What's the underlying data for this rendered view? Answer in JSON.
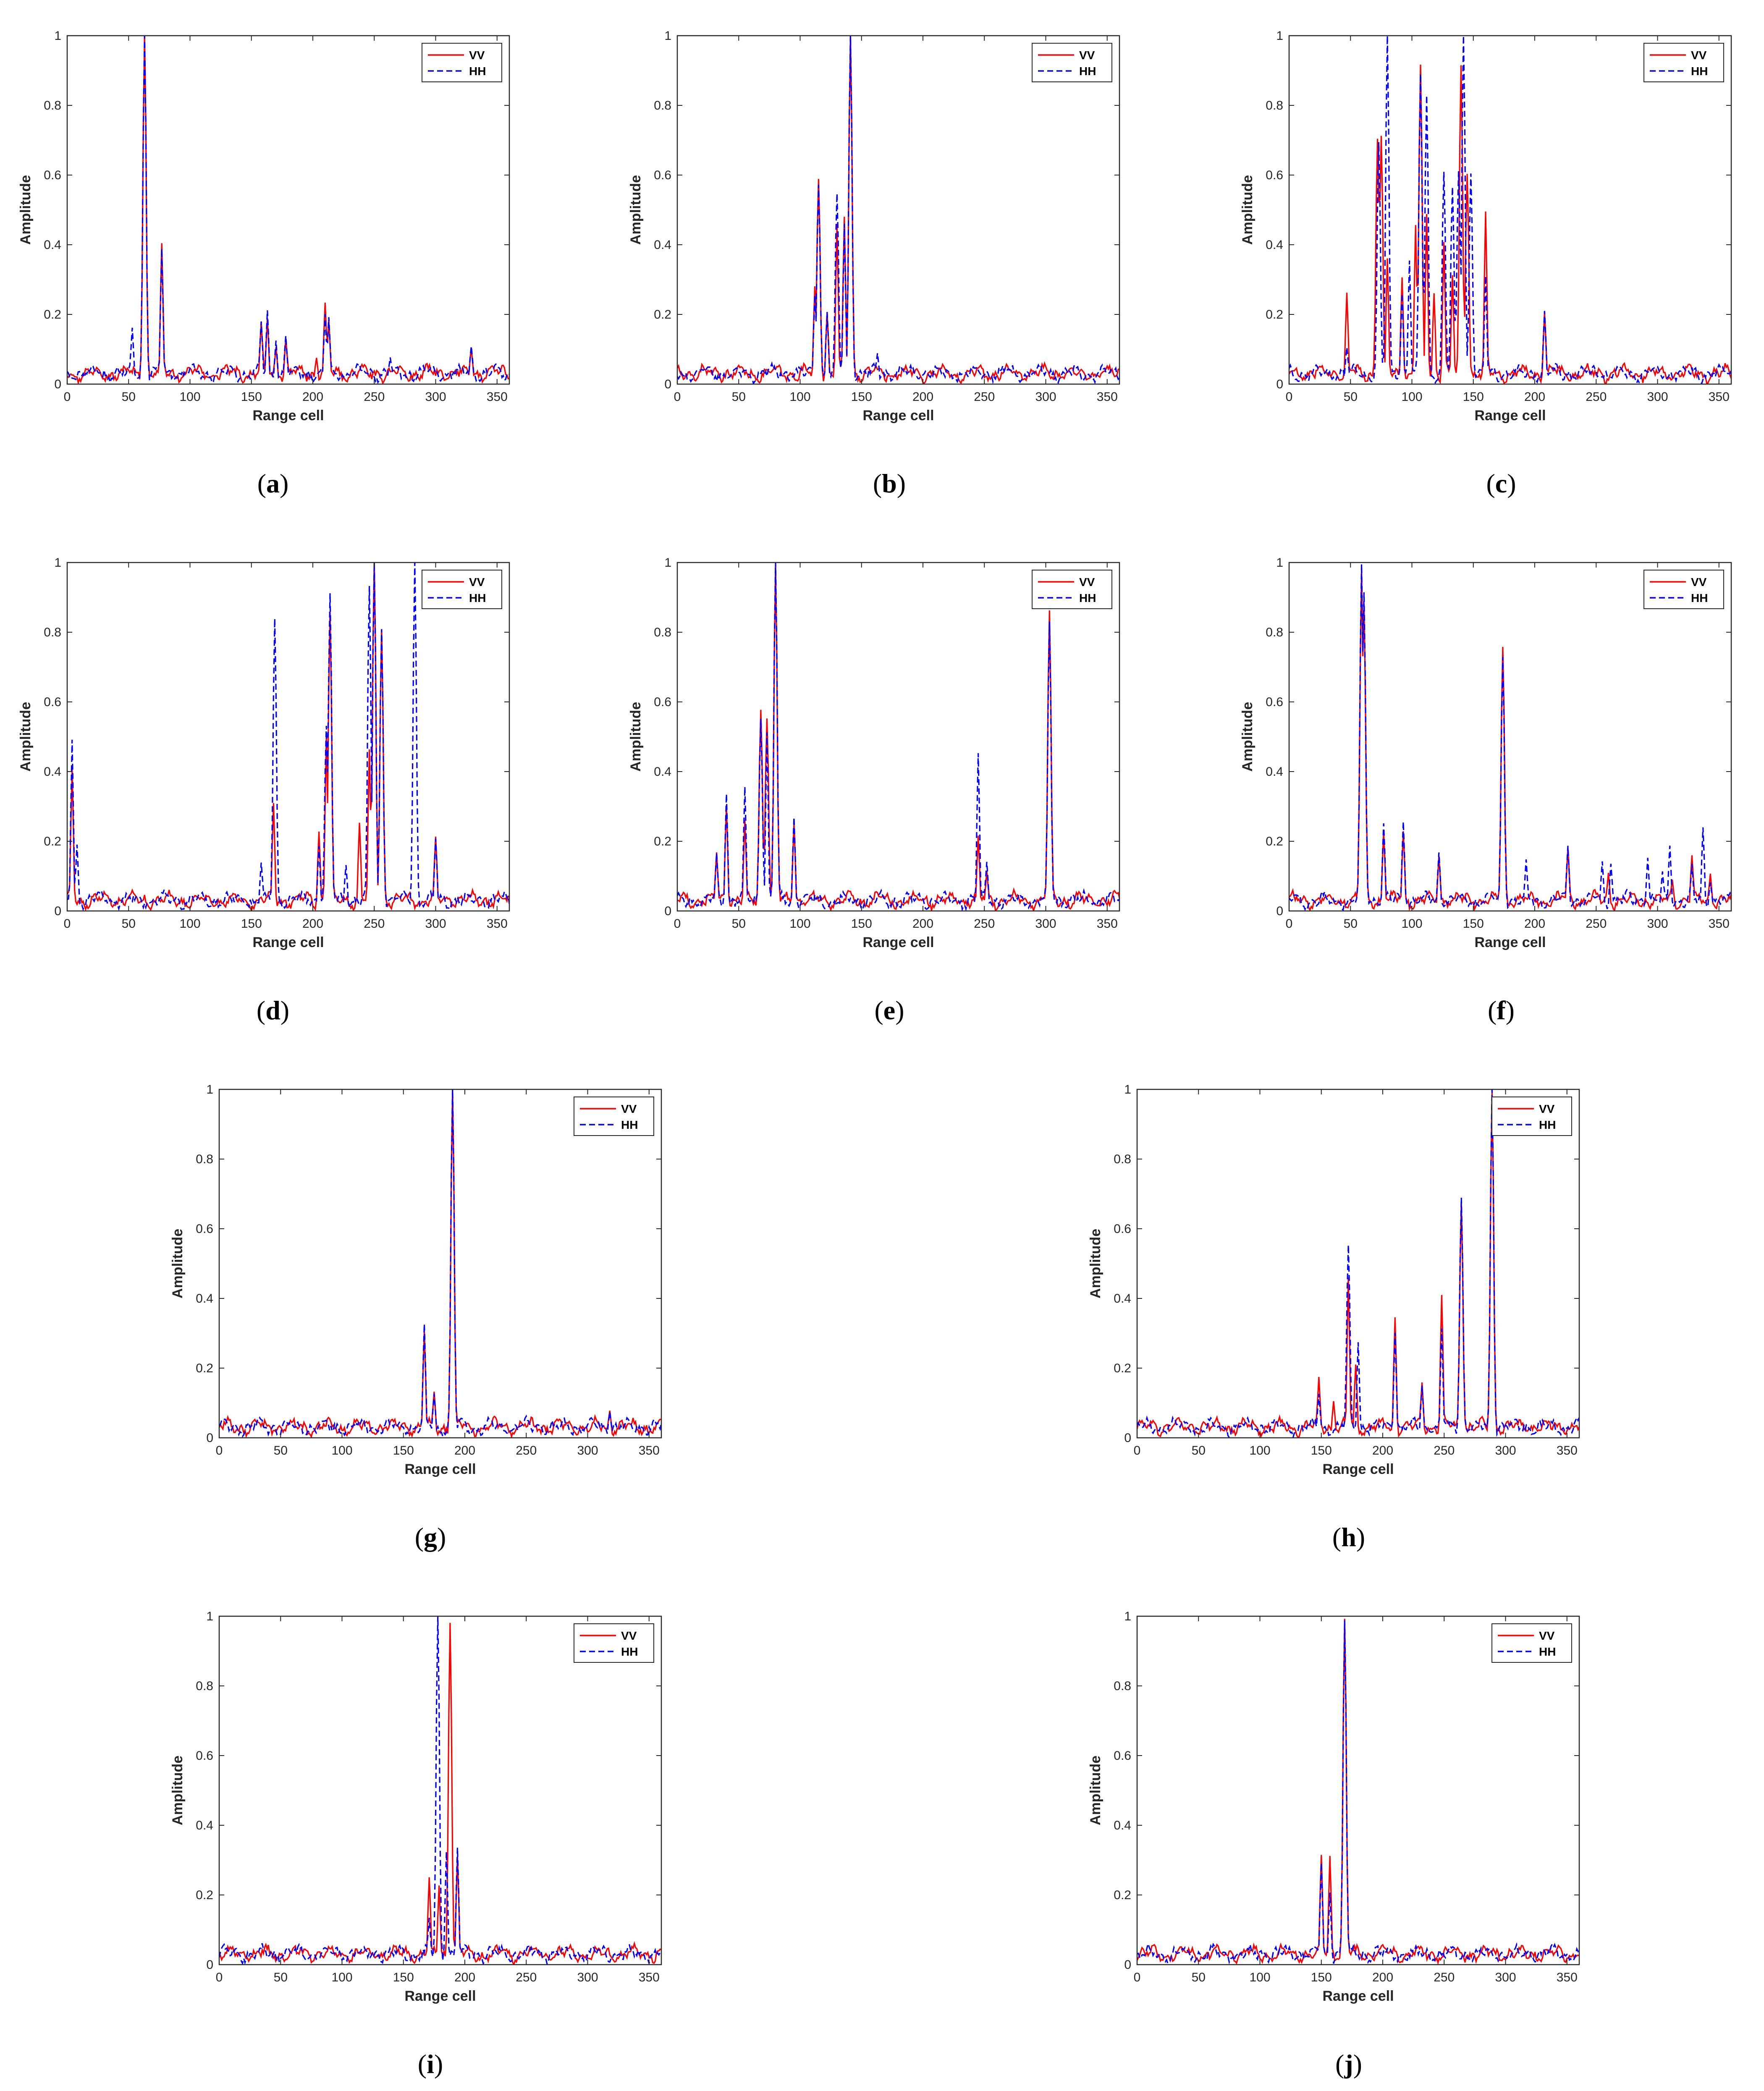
{
  "colors": {
    "vv": "#ff0000",
    "hh": "#0000ff",
    "axis": "#262626"
  },
  "chart_data": [
    {
      "id": "a",
      "caption": "a",
      "type": "line",
      "xlabel": "Range cell",
      "ylabel": "Amplitude",
      "xlim": [
        0,
        360
      ],
      "ylim": [
        0,
        1
      ],
      "xticks": [
        0,
        50,
        100,
        150,
        200,
        250,
        300,
        350
      ],
      "yticks": [
        0,
        0.2,
        0.4,
        0.6,
        0.8,
        1
      ],
      "legend": "top-right",
      "series": [
        {
          "name": "VV",
          "style": "solid",
          "peaks": [
            [
              63,
              1.0
            ],
            [
              77,
              0.39
            ],
            [
              158,
              0.16
            ],
            [
              163,
              0.18
            ],
            [
              170,
              0.1
            ],
            [
              178,
              0.12
            ],
            [
              203,
              0.07
            ],
            [
              210,
              0.22
            ],
            [
              213,
              0.17
            ],
            [
              329,
              0.1
            ]
          ]
        },
        {
          "name": "HH",
          "style": "dashed",
          "peaks": [
            [
              53,
              0.15
            ],
            [
              63,
              1.0
            ],
            [
              77,
              0.38
            ],
            [
              158,
              0.17
            ],
            [
              163,
              0.2
            ],
            [
              170,
              0.12
            ],
            [
              178,
              0.13
            ],
            [
              210,
              0.19
            ],
            [
              213,
              0.18
            ],
            [
              263,
              0.07
            ],
            [
              329,
              0.1
            ]
          ]
        }
      ]
    },
    {
      "id": "b",
      "caption": "b",
      "type": "line",
      "xlabel": "Range cell",
      "ylabel": "Amplitude",
      "xlim": [
        0,
        360
      ],
      "ylim": [
        0,
        1
      ],
      "xticks": [
        0,
        50,
        100,
        150,
        200,
        250,
        300,
        350
      ],
      "yticks": [
        0,
        0.2,
        0.4,
        0.6,
        0.8,
        1
      ],
      "legend": "top-right",
      "series": [
        {
          "name": "VV",
          "style": "solid",
          "peaks": [
            [
              112,
              0.27
            ],
            [
              115,
              0.58
            ],
            [
              122,
              0.2
            ],
            [
              130,
              0.45
            ],
            [
              136,
              0.47
            ],
            [
              141,
              1.0
            ]
          ]
        },
        {
          "name": "HH",
          "style": "dashed",
          "peaks": [
            [
              112,
              0.25
            ],
            [
              115,
              0.57
            ],
            [
              122,
              0.2
            ],
            [
              130,
              0.53
            ],
            [
              136,
              0.45
            ],
            [
              141,
              1.0
            ],
            [
              163,
              0.08
            ]
          ]
        }
      ]
    },
    {
      "id": "c",
      "caption": "c",
      "type": "line",
      "xlabel": "Range cell",
      "ylabel": "Amplitude",
      "xlim": [
        0,
        360
      ],
      "ylim": [
        0,
        1
      ],
      "xticks": [
        0,
        50,
        100,
        150,
        200,
        250,
        300,
        350
      ],
      "yticks": [
        0,
        0.2,
        0.4,
        0.6,
        0.8,
        1
      ],
      "legend": "top-right",
      "series": [
        {
          "name": "VV",
          "style": "solid",
          "peaks": [
            [
              47,
              0.25
            ],
            [
              72,
              0.7
            ],
            [
              75,
              0.7
            ],
            [
              80,
              0.35
            ],
            [
              92,
              0.3
            ],
            [
              103,
              0.45
            ],
            [
              107,
              0.9
            ],
            [
              112,
              0.48
            ],
            [
              118,
              0.25
            ],
            [
              126,
              0.4
            ],
            [
              133,
              0.3
            ],
            [
              140,
              0.9
            ],
            [
              145,
              0.6
            ],
            [
              160,
              0.48
            ],
            [
              208,
              0.2
            ]
          ]
        },
        {
          "name": "HH",
          "style": "dashed",
          "peaks": [
            [
              47,
              0.1
            ],
            [
              73,
              0.68
            ],
            [
              80,
              1.0
            ],
            [
              92,
              0.25
            ],
            [
              98,
              0.35
            ],
            [
              107,
              0.88
            ],
            [
              112,
              0.82
            ],
            [
              126,
              0.6
            ],
            [
              133,
              0.55
            ],
            [
              138,
              0.6
            ],
            [
              142,
              1.0
            ],
            [
              148,
              0.6
            ],
            [
              160,
              0.3
            ],
            [
              208,
              0.2
            ]
          ]
        }
      ]
    },
    {
      "id": "d",
      "caption": "d",
      "type": "line",
      "xlabel": "Range cell",
      "ylabel": "Amplitude",
      "xlim": [
        0,
        360
      ],
      "ylim": [
        0,
        1
      ],
      "xticks": [
        0,
        50,
        100,
        150,
        200,
        250,
        300,
        350
      ],
      "yticks": [
        0,
        0.2,
        0.4,
        0.6,
        0.8,
        1
      ],
      "legend": "top-right",
      "series": [
        {
          "name": "VV",
          "style": "solid",
          "peaks": [
            [
              4,
              0.4
            ],
            [
              168,
              0.3
            ],
            [
              205,
              0.22
            ],
            [
              211,
              0.5
            ],
            [
              214,
              0.85
            ],
            [
              238,
              0.24
            ],
            [
              246,
              0.45
            ],
            [
              250,
              1.0
            ],
            [
              256,
              0.8
            ],
            [
              300,
              0.2
            ]
          ]
        },
        {
          "name": "HH",
          "style": "dashed",
          "peaks": [
            [
              4,
              0.48
            ],
            [
              8,
              0.18
            ],
            [
              158,
              0.13
            ],
            [
              169,
              0.83
            ],
            [
              205,
              0.18
            ],
            [
              211,
              0.52
            ],
            [
              214,
              0.9
            ],
            [
              227,
              0.13
            ],
            [
              246,
              0.92
            ],
            [
              250,
              0.99
            ],
            [
              256,
              0.8
            ],
            [
              283,
              1.0
            ],
            [
              300,
              0.2
            ]
          ]
        }
      ]
    },
    {
      "id": "e",
      "caption": "e",
      "type": "line",
      "xlabel": "Range cell",
      "ylabel": "Amplitude",
      "xlim": [
        0,
        360
      ],
      "ylim": [
        0,
        1
      ],
      "xticks": [
        0,
        50,
        100,
        150,
        200,
        250,
        300,
        350
      ],
      "yticks": [
        0,
        0.2,
        0.4,
        0.6,
        0.8,
        1
      ],
      "legend": "top-right",
      "series": [
        {
          "name": "VV",
          "style": "solid",
          "peaks": [
            [
              32,
              0.16
            ],
            [
              40,
              0.3
            ],
            [
              55,
              0.25
            ],
            [
              68,
              0.57
            ],
            [
              73,
              0.55
            ],
            [
              80,
              0.98
            ],
            [
              95,
              0.25
            ],
            [
              245,
              0.2
            ],
            [
              252,
              0.1
            ],
            [
              303,
              0.85
            ]
          ]
        },
        {
          "name": "HH",
          "style": "dashed",
          "peaks": [
            [
              32,
              0.15
            ],
            [
              40,
              0.33
            ],
            [
              55,
              0.34
            ],
            [
              68,
              0.55
            ],
            [
              73,
              0.5
            ],
            [
              80,
              1.0
            ],
            [
              95,
              0.26
            ],
            [
              245,
              0.44
            ],
            [
              252,
              0.13
            ],
            [
              303,
              0.82
            ]
          ]
        }
      ]
    },
    {
      "id": "f",
      "caption": "f",
      "type": "line",
      "xlabel": "Range cell",
      "ylabel": "Amplitude",
      "xlim": [
        0,
        360
      ],
      "ylim": [
        0,
        1
      ],
      "xticks": [
        0,
        50,
        100,
        150,
        200,
        250,
        300,
        350
      ],
      "yticks": [
        0,
        0.2,
        0.4,
        0.6,
        0.8,
        1
      ],
      "legend": "top-right",
      "series": [
        {
          "name": "VV",
          "style": "solid",
          "peaks": [
            [
              59,
              0.97
            ],
            [
              61,
              0.87
            ],
            [
              77,
              0.22
            ],
            [
              93,
              0.22
            ],
            [
              122,
              0.15
            ],
            [
              174,
              0.75
            ],
            [
              227,
              0.17
            ],
            [
              260,
              0.1
            ],
            [
              312,
              0.08
            ],
            [
              328,
              0.15
            ],
            [
              343,
              0.1
            ]
          ]
        },
        {
          "name": "HH",
          "style": "dashed",
          "peaks": [
            [
              59,
              0.98
            ],
            [
              61,
              0.9
            ],
            [
              77,
              0.24
            ],
            [
              93,
              0.25
            ],
            [
              122,
              0.16
            ],
            [
              174,
              0.72
            ],
            [
              193,
              0.13
            ],
            [
              227,
              0.18
            ],
            [
              255,
              0.13
            ],
            [
              262,
              0.13
            ],
            [
              292,
              0.15
            ],
            [
              304,
              0.1
            ],
            [
              310,
              0.18
            ],
            [
              328,
              0.12
            ],
            [
              337,
              0.23
            ],
            [
              343,
              0.08
            ]
          ]
        }
      ]
    },
    {
      "id": "g",
      "caption": "g",
      "type": "line",
      "xlabel": "Range cell",
      "ylabel": "Amplitude",
      "xlim": [
        0,
        360
      ],
      "ylim": [
        0,
        1
      ],
      "xticks": [
        0,
        50,
        100,
        150,
        200,
        250,
        300,
        350
      ],
      "yticks": [
        0,
        0.2,
        0.4,
        0.6,
        0.8,
        1
      ],
      "legend": "top-right",
      "series": [
        {
          "name": "VV",
          "style": "solid",
          "peaks": [
            [
              167,
              0.3
            ],
            [
              175,
              0.12
            ],
            [
              190,
              1.0
            ],
            [
              318,
              0.07
            ]
          ]
        },
        {
          "name": "HH",
          "style": "dashed",
          "peaks": [
            [
              167,
              0.31
            ],
            [
              175,
              0.12
            ],
            [
              190,
              1.0
            ],
            [
              318,
              0.07
            ]
          ]
        }
      ]
    },
    {
      "id": "h",
      "caption": "h",
      "type": "line",
      "xlabel": "Range cell",
      "ylabel": "Amplitude",
      "xlim": [
        0,
        360
      ],
      "ylim": [
        0,
        1
      ],
      "xticks": [
        0,
        50,
        100,
        150,
        200,
        250,
        300,
        350
      ],
      "yticks": [
        0,
        0.2,
        0.4,
        0.6,
        0.8,
        1
      ],
      "legend": "top-right",
      "series": [
        {
          "name": "VV",
          "style": "solid",
          "peaks": [
            [
              148,
              0.16
            ],
            [
              160,
              0.1
            ],
            [
              172,
              0.45
            ],
            [
              178,
              0.2
            ],
            [
              210,
              0.34
            ],
            [
              232,
              0.15
            ],
            [
              248,
              0.4
            ],
            [
              264,
              0.67
            ],
            [
              289,
              0.98
            ]
          ]
        },
        {
          "name": "HH",
          "style": "dashed",
          "peaks": [
            [
              148,
              0.12
            ],
            [
              172,
              0.54
            ],
            [
              180,
              0.27
            ],
            [
              210,
              0.3
            ],
            [
              232,
              0.14
            ],
            [
              248,
              0.3
            ],
            [
              264,
              0.68
            ],
            [
              289,
              1.0
            ]
          ]
        }
      ]
    },
    {
      "id": "i",
      "caption": "i",
      "type": "line",
      "xlabel": "Range cell",
      "ylabel": "Amplitude",
      "xlim": [
        0,
        360
      ],
      "ylim": [
        0,
        1
      ],
      "xticks": [
        0,
        50,
        100,
        150,
        200,
        250,
        300,
        350
      ],
      "yticks": [
        0,
        0.2,
        0.4,
        0.6,
        0.8,
        1
      ],
      "legend": "top-right",
      "series": [
        {
          "name": "VV",
          "style": "solid",
          "peaks": [
            [
              171,
              0.24
            ],
            [
              179,
              0.22
            ],
            [
              188,
              0.98
            ],
            [
              194,
              0.3
            ]
          ]
        },
        {
          "name": "HH",
          "style": "dashed",
          "peaks": [
            [
              171,
              0.12
            ],
            [
              178,
              1.0
            ],
            [
              185,
              0.32
            ],
            [
              194,
              0.33
            ]
          ]
        }
      ]
    },
    {
      "id": "j",
      "caption": "j",
      "type": "line",
      "xlabel": "Range cell",
      "ylabel": "Amplitude",
      "xlim": [
        0,
        360
      ],
      "ylim": [
        0,
        1
      ],
      "xticks": [
        0,
        50,
        100,
        150,
        200,
        250,
        300,
        350
      ],
      "yticks": [
        0,
        0.2,
        0.4,
        0.6,
        0.8,
        1
      ],
      "legend": "top-right",
      "series": [
        {
          "name": "VV",
          "style": "solid",
          "peaks": [
            [
              150,
              0.3
            ],
            [
              157,
              0.3
            ],
            [
              169,
              0.98
            ]
          ]
        },
        {
          "name": "HH",
          "style": "dashed",
          "peaks": [
            [
              150,
              0.28
            ],
            [
              157,
              0.2
            ],
            [
              169,
              0.98
            ]
          ]
        }
      ]
    }
  ]
}
